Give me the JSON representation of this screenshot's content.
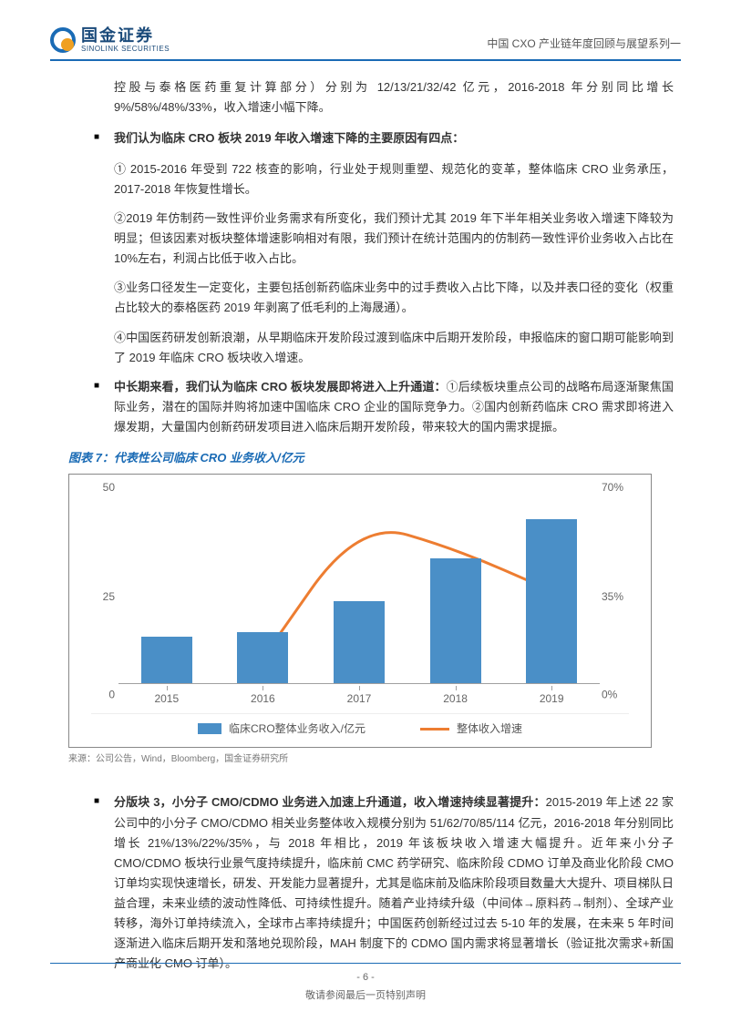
{
  "header": {
    "logo_cn": "国金证券",
    "logo_en": "SINOLINK SECURITIES",
    "doc_title": "中国 CXO 产业链年度回顾与展望系列一"
  },
  "body": {
    "p_intro": "控股与泰格医药重复计算部分）分别为 12/13/21/32/42 亿元，2016-2018 年分别同比增长 9%/58%/48%/33%，收入增速小幅下降。",
    "b1": "我们认为临床 CRO 板块 2019 年收入增速下降的主要原因有四点：",
    "s1": "① 2015-2016 年受到 722 核查的影响，行业处于规则重塑、规范化的变革，整体临床 CRO 业务承压，2017-2018 年恢复性增长。",
    "s2": "②2019 年仿制药一致性评价业务需求有所变化，我们预计尤其 2019 年下半年相关业务收入增速下降较为明显；但该因素对板块整体增速影响相对有限，我们预计在统计范围内的仿制药一致性评价业务收入占比在 10%左右，利润占比低于收入占比。",
    "s3": "③业务口径发生一定变化，主要包括创新药临床业务中的过手费收入占比下降，以及并表口径的变化（权重占比较大的泰格医药 2019 年剥离了低毛利的上海晟通）。",
    "s4": "④中国医药研发创新浪潮，从早期临床开发阶段过渡到临床中后期开发阶段，申报临床的窗口期可能影响到了 2019 年临床 CRO 板块收入增速。",
    "b2_bold": "中长期来看，我们认为临床 CRO 板块发展即将进入上升通道：",
    "b2_rest": "①后续板块重点公司的战略布局逐渐聚焦国际业务，潜在的国际并购将加速中国临床 CRO 企业的国际竞争力。②国内创新药临床 CRO 需求即将进入爆发期，大量国内创新药研发项目进入临床后期开发阶段，带来较大的国内需求提振。",
    "chart_title": "图表 7：代表性公司临床 CRO 业务收入/亿元",
    "chart_source": "来源：公司公告，Wind，Bloomberg，国金证券研究所",
    "b3_bold": "分版块 3，小分子 CMO/CDMO 业务进入加速上升通道，收入增速持续显著提升：",
    "b3_rest": "2015-2019 年上述 22 家公司中的小分子 CMO/CDMO 相关业务整体收入规模分别为 51/62/70/85/114 亿元，2016-2018 年分别同比增长 21%/13%/22%/35%，与 2018 年相比，2019 年该板块收入增速大幅提升。近年来小分子 CMO/CDMO 板块行业景气度持续提升，临床前 CMC 药学研究、临床阶段 CDMO 订单及商业化阶段 CMO 订单均实现快速增长，研发、开发能力显著提升，尤其是临床前及临床阶段项目数量大大提升、项目梯队日益合理，未来业绩的波动性降低、可持续性提升。随着产业持续升级（中间体→原料药→制剂）、全球产业转移，海外订单持续流入，全球市占率持续提升；中国医药创新经过过去 5-10 年的发展，在未来 5 年时间逐渐进入临床后期开发和落地兑现阶段，MAH 制度下的 CDMO 国内需求将显著增长（验证批次需求+新国产商业化 CMO 订单）。"
  },
  "chart": {
    "type": "bar+line",
    "categories": [
      "2015",
      "2016",
      "2017",
      "2018",
      "2019"
    ],
    "bar_values": [
      12,
      13,
      21,
      32,
      42
    ],
    "line_values": [
      null,
      9,
      58,
      48,
      33
    ],
    "y_left": {
      "min": 0,
      "max": 50,
      "ticks": [
        0,
        25,
        50
      ]
    },
    "y_right": {
      "min": 0,
      "max": 70,
      "ticks": [
        "0%",
        "35%",
        "70%"
      ]
    },
    "bar_color": "#4a8fc7",
    "line_color": "#ed7d31",
    "line_width": 3,
    "background": "#ffffff",
    "legend": {
      "bar": "临床CRO整体业务收入/亿元",
      "line": "整体收入增速"
    }
  },
  "footer": {
    "page": "- 6 -",
    "note": "敬请参阅最后一页特别声明"
  }
}
